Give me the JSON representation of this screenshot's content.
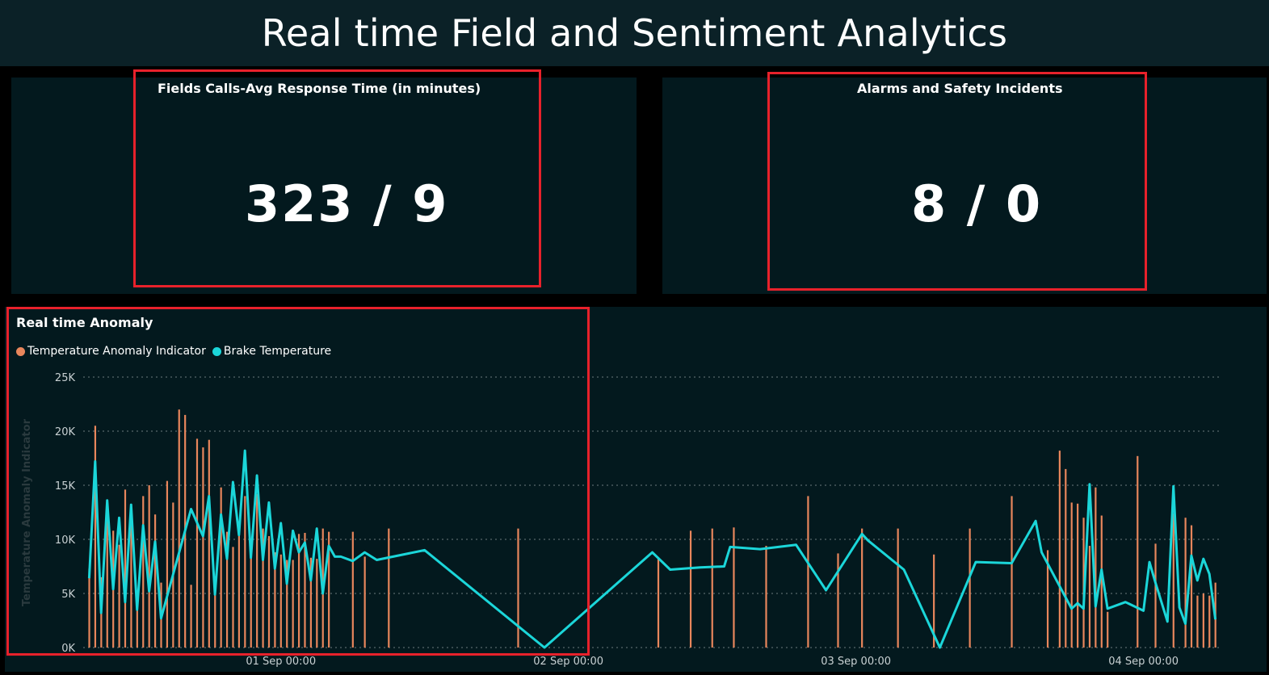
{
  "dashboard": {
    "title": "Real time Field and Sentiment Analytics"
  },
  "kpis": [
    {
      "title": "Fields Calls-Avg Response Time (in minutes)",
      "value": "323 / 9"
    },
    {
      "title": "Alarms and Safety Incidents",
      "value": "8 / 0"
    }
  ],
  "colors": {
    "title_bar": "#0b2127",
    "card": "#03191e",
    "highlight": "#e8212b",
    "anomaly": "#e8865c",
    "brake": "#1bd6d9",
    "grid": "#6d7b7f",
    "tick": "#c9d1d3"
  },
  "chart": {
    "title": "Real time Anomaly",
    "legend": [
      {
        "name": "Temperature Anomaly Indicator",
        "color": "#e8865c"
      },
      {
        "name": "Brake Temperature",
        "color": "#1bd6d9"
      }
    ]
  },
  "chart_data": {
    "type": "line",
    "title": "Real time Anomaly",
    "xlabel": "",
    "ylabel": "Temperature Anomaly Indicator",
    "x_unit": "hours since 31 Aug 00:00",
    "xlim": [
      7.5,
      102.5
    ],
    "ylim": [
      0,
      25000
    ],
    "yticks": [
      0,
      5000,
      10000,
      15000,
      20000,
      25000
    ],
    "ytick_labels": [
      "0K",
      "5K",
      "10K",
      "15K",
      "20K",
      "25K"
    ],
    "xticks": [
      24,
      48,
      72,
      96
    ],
    "xtick_labels": [
      "01 Sep 00:00",
      "02 Sep 00:00",
      "03 Sep 00:00",
      "04 Sep 00:00"
    ],
    "grid": "horizontal-dotted",
    "legend_position": "top-left",
    "series": [
      {
        "name": "Temperature Anomaly Indicator",
        "style": "vertical-bars",
        "x": [
          8.0,
          8.5,
          9.0,
          9.5,
          10.0,
          10.5,
          11.0,
          11.5,
          12.0,
          12.5,
          13.0,
          13.5,
          14.0,
          14.5,
          15.0,
          15.5,
          16.0,
          16.5,
          17.0,
          17.5,
          18.0,
          18.5,
          19.0,
          19.5,
          20.0,
          20.5,
          21.0,
          21.5,
          22.0,
          22.5,
          23.0,
          23.5,
          24.0,
          24.5,
          25.0,
          25.5,
          26.0,
          26.5,
          27.0,
          27.5,
          28.0,
          30.0,
          31.0,
          33.0,
          43.8,
          55.5,
          58.2,
          60.0,
          61.8,
          64.5,
          68.0,
          70.5,
          72.5,
          75.5,
          78.5,
          81.5,
          85.0,
          88.0,
          89.0,
          89.5,
          90.0,
          90.5,
          91.0,
          91.5,
          92.0,
          92.5,
          93.0,
          95.5,
          97.0,
          98.5,
          99.5,
          100.0,
          100.5,
          101.0,
          101.5,
          102.0
        ],
        "y": [
          7300,
          20500,
          6500,
          13300,
          10800,
          9500,
          14600,
          12700,
          3800,
          14000,
          15000,
          12300,
          6000,
          15400,
          13400,
          22000,
          21500,
          5800,
          19300,
          18500,
          19200,
          6000,
          14800,
          10700,
          9300,
          11000,
          14000,
          9900,
          14200,
          11000,
          10300,
          8800,
          8600,
          8100,
          8100,
          10500,
          10600,
          8300,
          8200,
          11000,
          10700,
          10700,
          8400,
          11000,
          11000,
          8300,
          10800,
          11000,
          11100,
          9400,
          14000,
          8700,
          11000,
          11000,
          8600,
          11000,
          14000,
          9000,
          18200,
          16500,
          13400,
          13300,
          12000,
          9400,
          14800,
          12200,
          3300,
          17700,
          9600,
          12400,
          12000,
          11300,
          4800,
          5000,
          4800,
          6000
        ]
      },
      {
        "name": "Brake Temperature",
        "style": "line",
        "x": [
          8.0,
          8.5,
          9.0,
          9.5,
          10.0,
          10.5,
          11.0,
          11.5,
          12.0,
          12.5,
          13.0,
          13.5,
          14.0,
          16.5,
          17.5,
          18.0,
          18.5,
          19.0,
          19.5,
          20.0,
          20.5,
          21.0,
          21.5,
          22.0,
          22.5,
          23.0,
          23.5,
          24.0,
          24.5,
          25.0,
          25.5,
          26.0,
          26.5,
          27.0,
          27.5,
          28.0,
          28.5,
          29.0,
          30.0,
          31.0,
          32.0,
          36.0,
          46.0,
          55.0,
          56.5,
          59.0,
          61.0,
          61.5,
          64.0,
          67.0,
          69.5,
          72.5,
          73.0,
          76.0,
          79.0,
          82.0,
          85.0,
          87.0,
          87.5,
          90.0,
          90.5,
          91.0,
          91.5,
          92.0,
          92.5,
          93.0,
          94.5,
          96.0,
          96.5,
          97.0,
          98.0,
          98.5,
          99.0,
          99.5,
          100.0,
          100.5,
          101.0,
          101.5,
          102.0
        ],
        "y": [
          6400,
          17200,
          3200,
          13600,
          5400,
          12000,
          4200,
          13200,
          3500,
          11300,
          5200,
          9800,
          2700,
          12800,
          10300,
          14000,
          4900,
          12300,
          8200,
          15300,
          10400,
          18200,
          8300,
          15900,
          8100,
          13400,
          7300,
          11500,
          5900,
          10800,
          8800,
          9700,
          6200,
          11000,
          5000,
          9400,
          8400,
          8400,
          8000,
          8800,
          8100,
          9000,
          0,
          8800,
          7200,
          7400,
          7500,
          9300,
          9100,
          9500,
          5300,
          10500,
          9900,
          7200,
          0,
          7900,
          7800,
          11700,
          8800,
          3600,
          4100,
          3600,
          15100,
          3800,
          7200,
          3600,
          4200,
          3400,
          7900,
          6000,
          2400,
          14900,
          3700,
          2200,
          8500,
          6200,
          8200,
          6800,
          2600
        ]
      }
    ]
  }
}
